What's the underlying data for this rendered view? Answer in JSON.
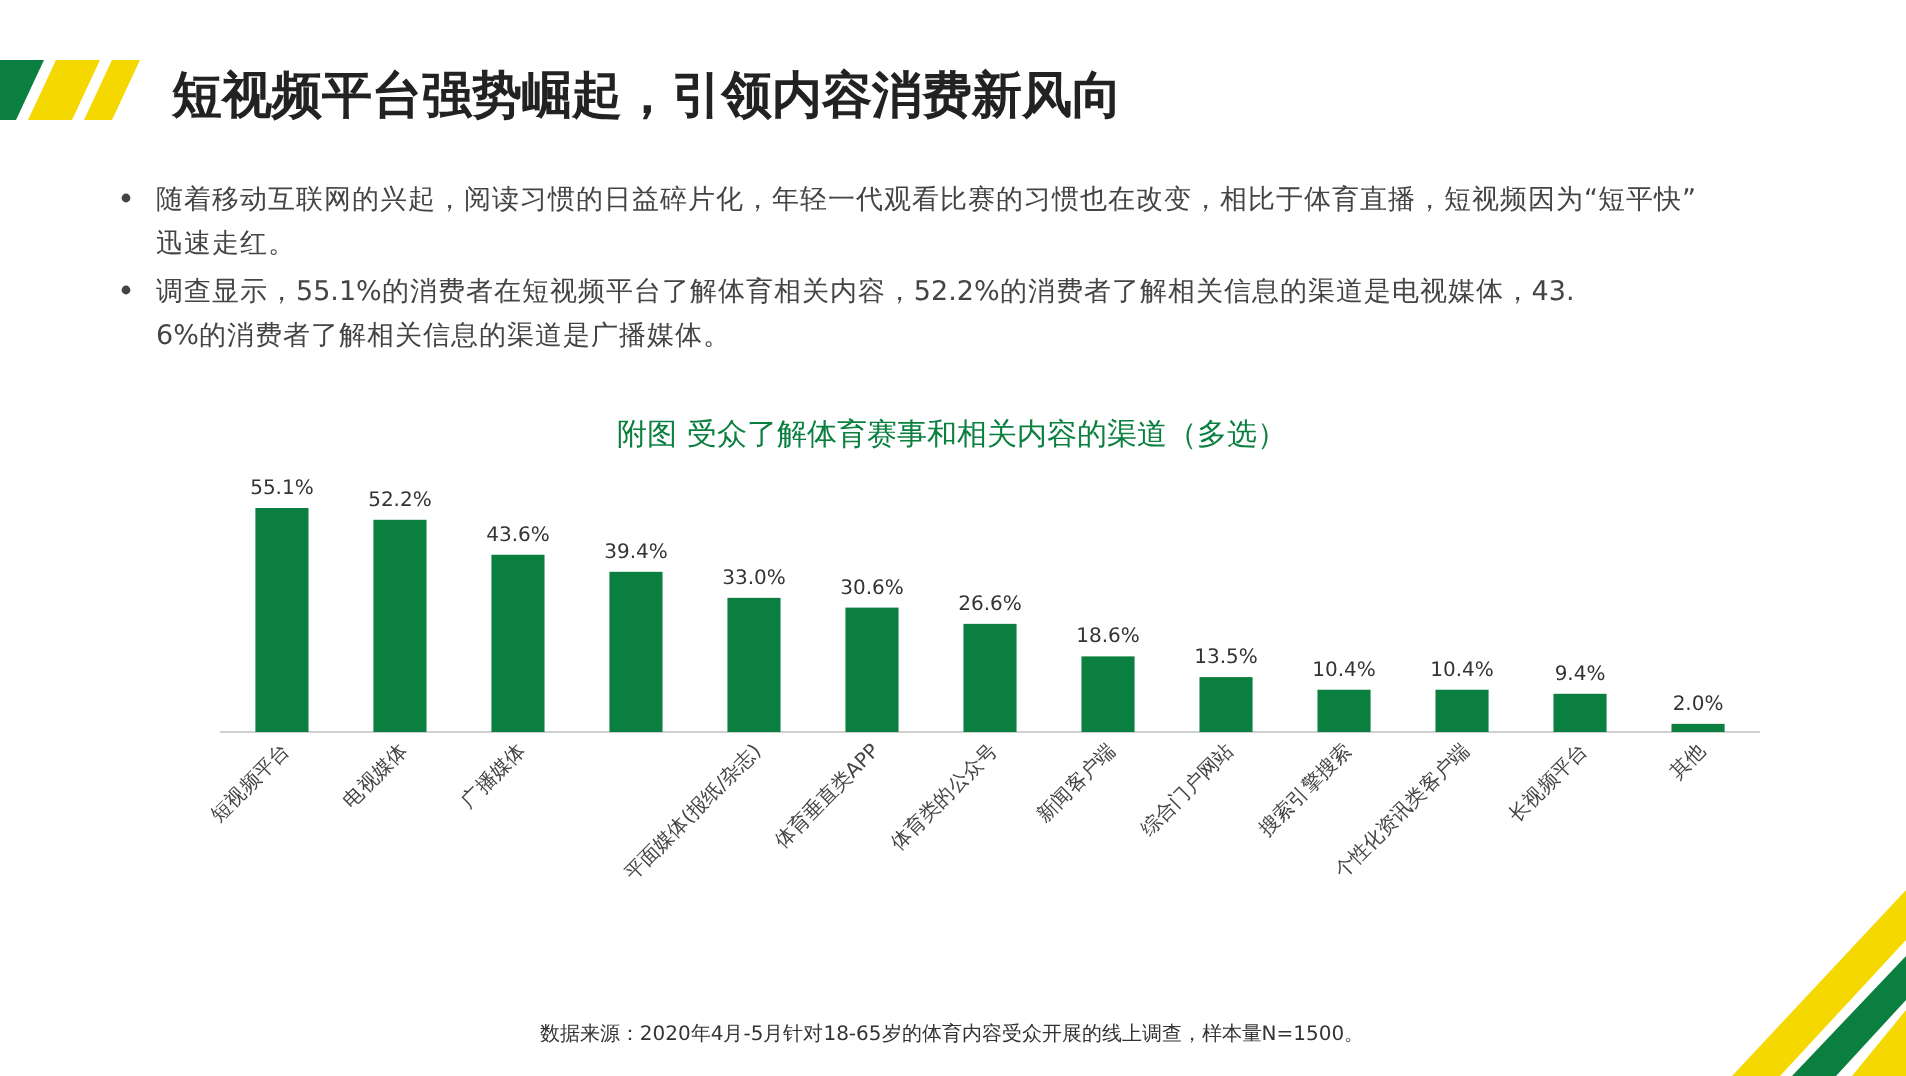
{
  "chart_data": {
    "type": "bar",
    "title": "短视频平台强势崛起，引领内容消费新风向",
    "subtitle": "附图  受众了解体育赛事和相关内容的渠道（多选）",
    "categories": [
      "短视频平台",
      "电视媒体",
      "广播媒体",
      null,
      "平面媒体(报纸/杂志)",
      "体育垂直类APP",
      "体育类的公众号",
      "新闻客户端",
      "综合门户网站",
      "搜索引擎搜索",
      "个性化资讯类客户端",
      "长视频平台",
      "其他"
    ],
    "values": [
      55.1,
      52.2,
      43.6,
      39.4,
      33.0,
      30.6,
      26.6,
      18.6,
      13.5,
      10.4,
      10.4,
      9.4,
      2.0
    ],
    "value_labels": [
      "55.1%",
      "52.2%",
      "43.6%",
      "39.4%",
      "33.0%",
      "30.6%",
      "26.6%",
      "18.6%",
      "13.5%",
      "10.4%",
      "10.4%",
      "9.4%",
      "2.0%"
    ],
    "color": "#0a7f3f",
    "annotations": [
      "随着移动互联网的兴起，阅读习惯的日益碎片化，年轻一代观看比赛的习惯也在改变，相比于体育直播，短视频因为“短平快”迅速走红。",
      "调查显示，55.1%的消费者在短视频平台了解体育相关内容，52.2%的消费者了解相关信息的渠道是电视媒体，43.6%的消费者了解相关信息的渠道是广播媒体。",
      "数据来源：2020年4月-5月针对18-65岁的体育内容受众开展的线上调查，样本量N=1500。"
    ]
  }
}
